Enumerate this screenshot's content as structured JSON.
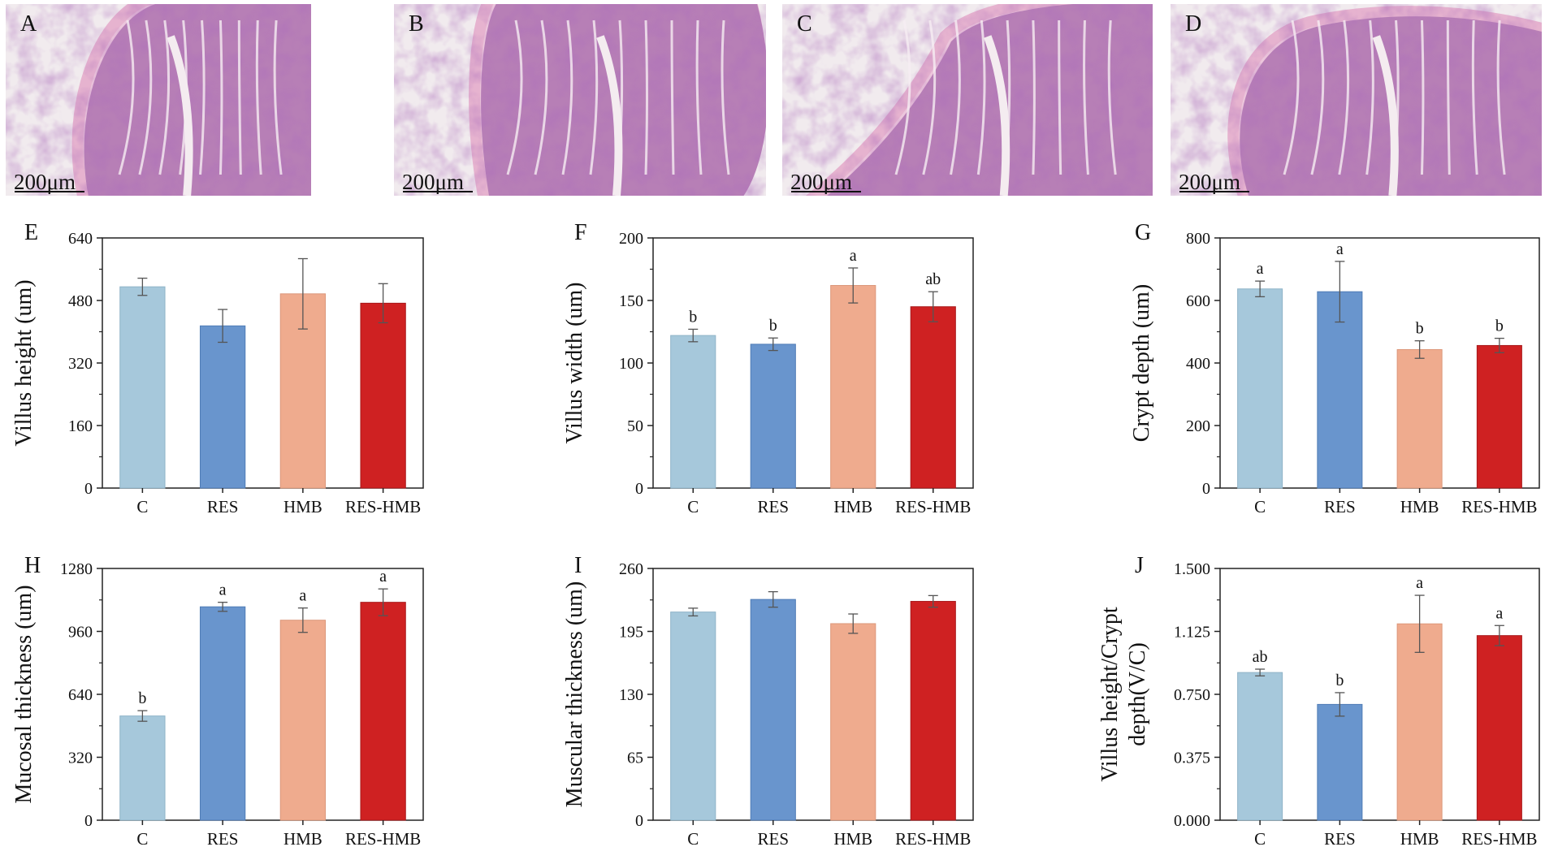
{
  "micrographs": [
    {
      "panel": "A",
      "scale_bar": "200μm"
    },
    {
      "panel": "B",
      "scale_bar": "200μm"
    },
    {
      "panel": "C",
      "scale_bar": "200μm"
    },
    {
      "panel": "D",
      "scale_bar": "200μm"
    }
  ],
  "group_colors": {
    "C": "#a6c8db",
    "RES": "#6995cd",
    "HMB": "#efab8e",
    "RES-HMB": "#cf2122"
  },
  "chart_data": [
    {
      "panel": "E",
      "type": "bar",
      "categories": [
        "C",
        "RES",
        "HMB",
        "RES-HMB"
      ],
      "values": [
        515,
        415,
        497,
        473
      ],
      "errors": [
        22,
        42,
        90,
        50
      ],
      "letters": [
        "",
        "",
        "",
        ""
      ],
      "ylabel": "Villus height (um)",
      "ylim": [
        0,
        640
      ],
      "yticks": [
        "0",
        "160",
        "320",
        "480",
        "640"
      ]
    },
    {
      "panel": "F",
      "type": "bar",
      "categories": [
        "C",
        "RES",
        "HMB",
        "RES-HMB"
      ],
      "values": [
        122,
        115,
        162,
        145
      ],
      "errors": [
        5,
        5,
        14,
        12
      ],
      "letters": [
        "b",
        "b",
        "a",
        "ab"
      ],
      "ylabel": "Villus width (um)",
      "ylim": [
        0,
        200
      ],
      "yticks": [
        "0",
        "50",
        "100",
        "150",
        "200"
      ]
    },
    {
      "panel": "G",
      "type": "bar",
      "categories": [
        "C",
        "RES",
        "HMB",
        "RES-HMB"
      ],
      "values": [
        637,
        628,
        443,
        456
      ],
      "errors": [
        25,
        97,
        28,
        23
      ],
      "letters": [
        "a",
        "a",
        "b",
        "b"
      ],
      "ylabel": "Crypt depth (um)",
      "ylim": [
        0,
        800
      ],
      "yticks": [
        "0",
        "200",
        "400",
        "600",
        "800"
      ]
    },
    {
      "panel": "H",
      "type": "bar",
      "categories": [
        "C",
        "RES",
        "HMB",
        "RES-HMB"
      ],
      "values": [
        530,
        1085,
        1017,
        1108
      ],
      "errors": [
        27,
        23,
        62,
        68
      ],
      "letters": [
        "b",
        "a",
        "a",
        "a"
      ],
      "ylabel": "Mucosal thickness (um)",
      "ylim": [
        0,
        1280
      ],
      "yticks": [
        "0",
        "320",
        "640",
        "960",
        "1280"
      ]
    },
    {
      "panel": "I",
      "type": "bar",
      "categories": [
        "C",
        "RES",
        "HMB",
        "RES-HMB"
      ],
      "values": [
        215,
        228,
        203,
        226
      ],
      "errors": [
        4,
        8,
        10,
        6
      ],
      "letters": [
        "",
        "",
        "",
        ""
      ],
      "ylabel": "Muscular thickness (um)",
      "ylim": [
        0,
        260
      ],
      "yticks": [
        "0",
        "65",
        "130",
        "195",
        "260"
      ]
    },
    {
      "panel": "J",
      "type": "bar",
      "categories": [
        "C",
        "RES",
        "HMB",
        "RES-HMB"
      ],
      "values": [
        0.88,
        0.69,
        1.17,
        1.1
      ],
      "errors": [
        0.02,
        0.07,
        0.17,
        0.06
      ],
      "letters": [
        "ab",
        "b",
        "a",
        "a"
      ],
      "ylabel": "Villus height/Crypt depth(V/C)",
      "ylabel_lines": [
        "Villus height/Crypt",
        "depth(V/C)"
      ],
      "ylim": [
        0,
        1.5
      ],
      "yticks": [
        "0.000",
        "0.375",
        "0.750",
        "1.125",
        "1.500"
      ]
    }
  ]
}
